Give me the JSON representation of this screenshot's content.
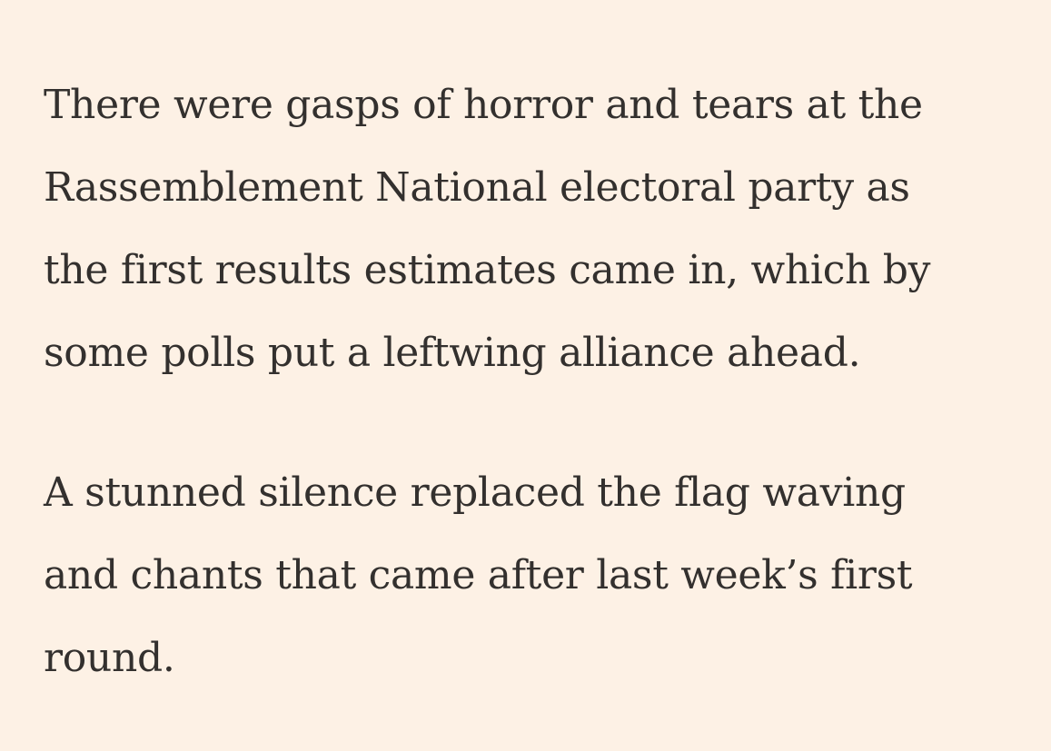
{
  "article": {
    "paragraphs": [
      {
        "lines": [
          "There were gasps of horror and tears at the",
          "Rassemblement National electoral party as",
          "the first results estimates came in, which by",
          "some polls put a leftwing alliance ahead."
        ]
      },
      {
        "lines": [
          "A stunned silence replaced the flag waving",
          "and chants that came after last week’s first",
          "round."
        ]
      }
    ]
  },
  "colors": {
    "background": "#fdf1e5",
    "text": "#33302e"
  }
}
